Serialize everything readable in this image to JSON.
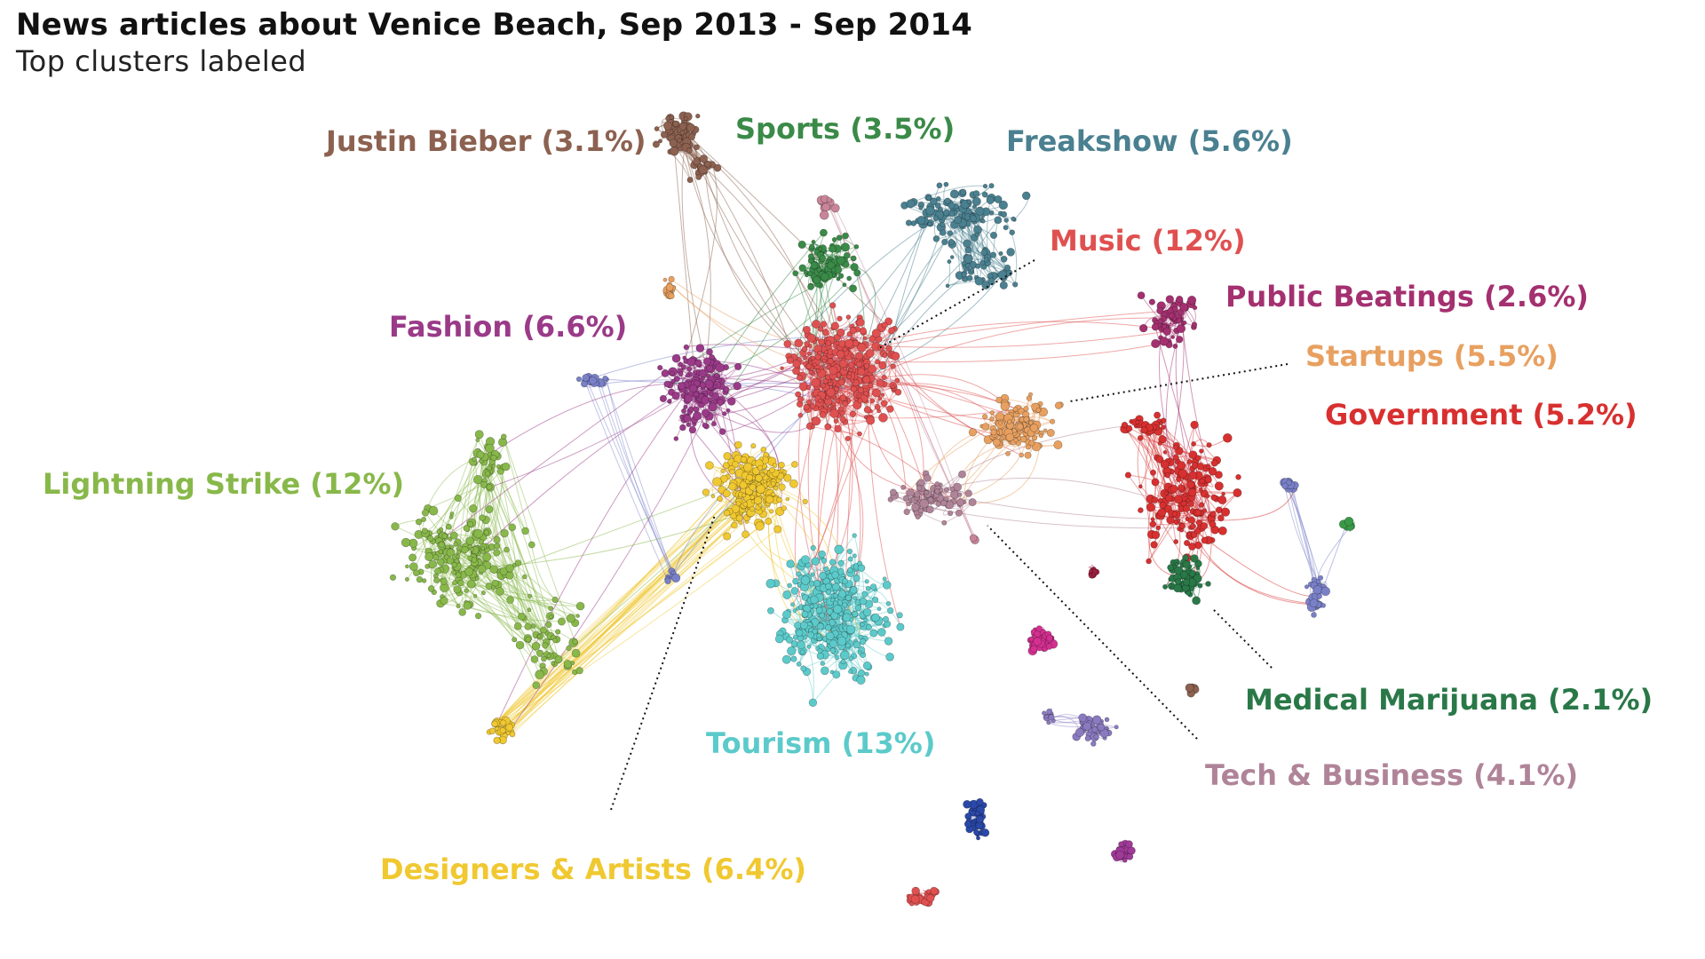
{
  "header": {
    "title": "News articles about Venice Beach, Sep 2013 - Sep 2014",
    "subtitle": "Top clusters labeled"
  },
  "clusters": [
    {
      "label": "Justin Bieber (3.1%)",
      "color": "#8c6150"
    },
    {
      "label": "Sports (3.5%)",
      "color": "#3a8a48"
    },
    {
      "label": "Freakshow (5.6%)",
      "color": "#4a8090"
    },
    {
      "label": "Music (12%)",
      "color": "#e05050"
    },
    {
      "label": "Public Beatings (2.6%)",
      "color": "#a43070"
    },
    {
      "label": "Fashion (6.6%)",
      "color": "#9a3a88"
    },
    {
      "label": "Startups (5.5%)",
      "color": "#e8a060"
    },
    {
      "label": "Government (5.2%)",
      "color": "#d83030"
    },
    {
      "label": "Lightning Strike (12%)",
      "color": "#88b84a"
    },
    {
      "label": "Medical Marijuana (2.1%)",
      "color": "#2a7848"
    },
    {
      "label": "Tourism (13%)",
      "color": "#5ccaca"
    },
    {
      "label": "Tech & Business (4.1%)",
      "color": "#b08498"
    },
    {
      "label": "Designers & Artists (6.4%)",
      "color": "#f0c830"
    }
  ],
  "minor_cluster_colors": [
    "#d43090",
    "#8a7ac0",
    "#2a48a8",
    "#a03a98",
    "#e05050",
    "#a02040",
    "#8c6150",
    "#3a9a48",
    "#7a80c8",
    "#c88498"
  ]
}
